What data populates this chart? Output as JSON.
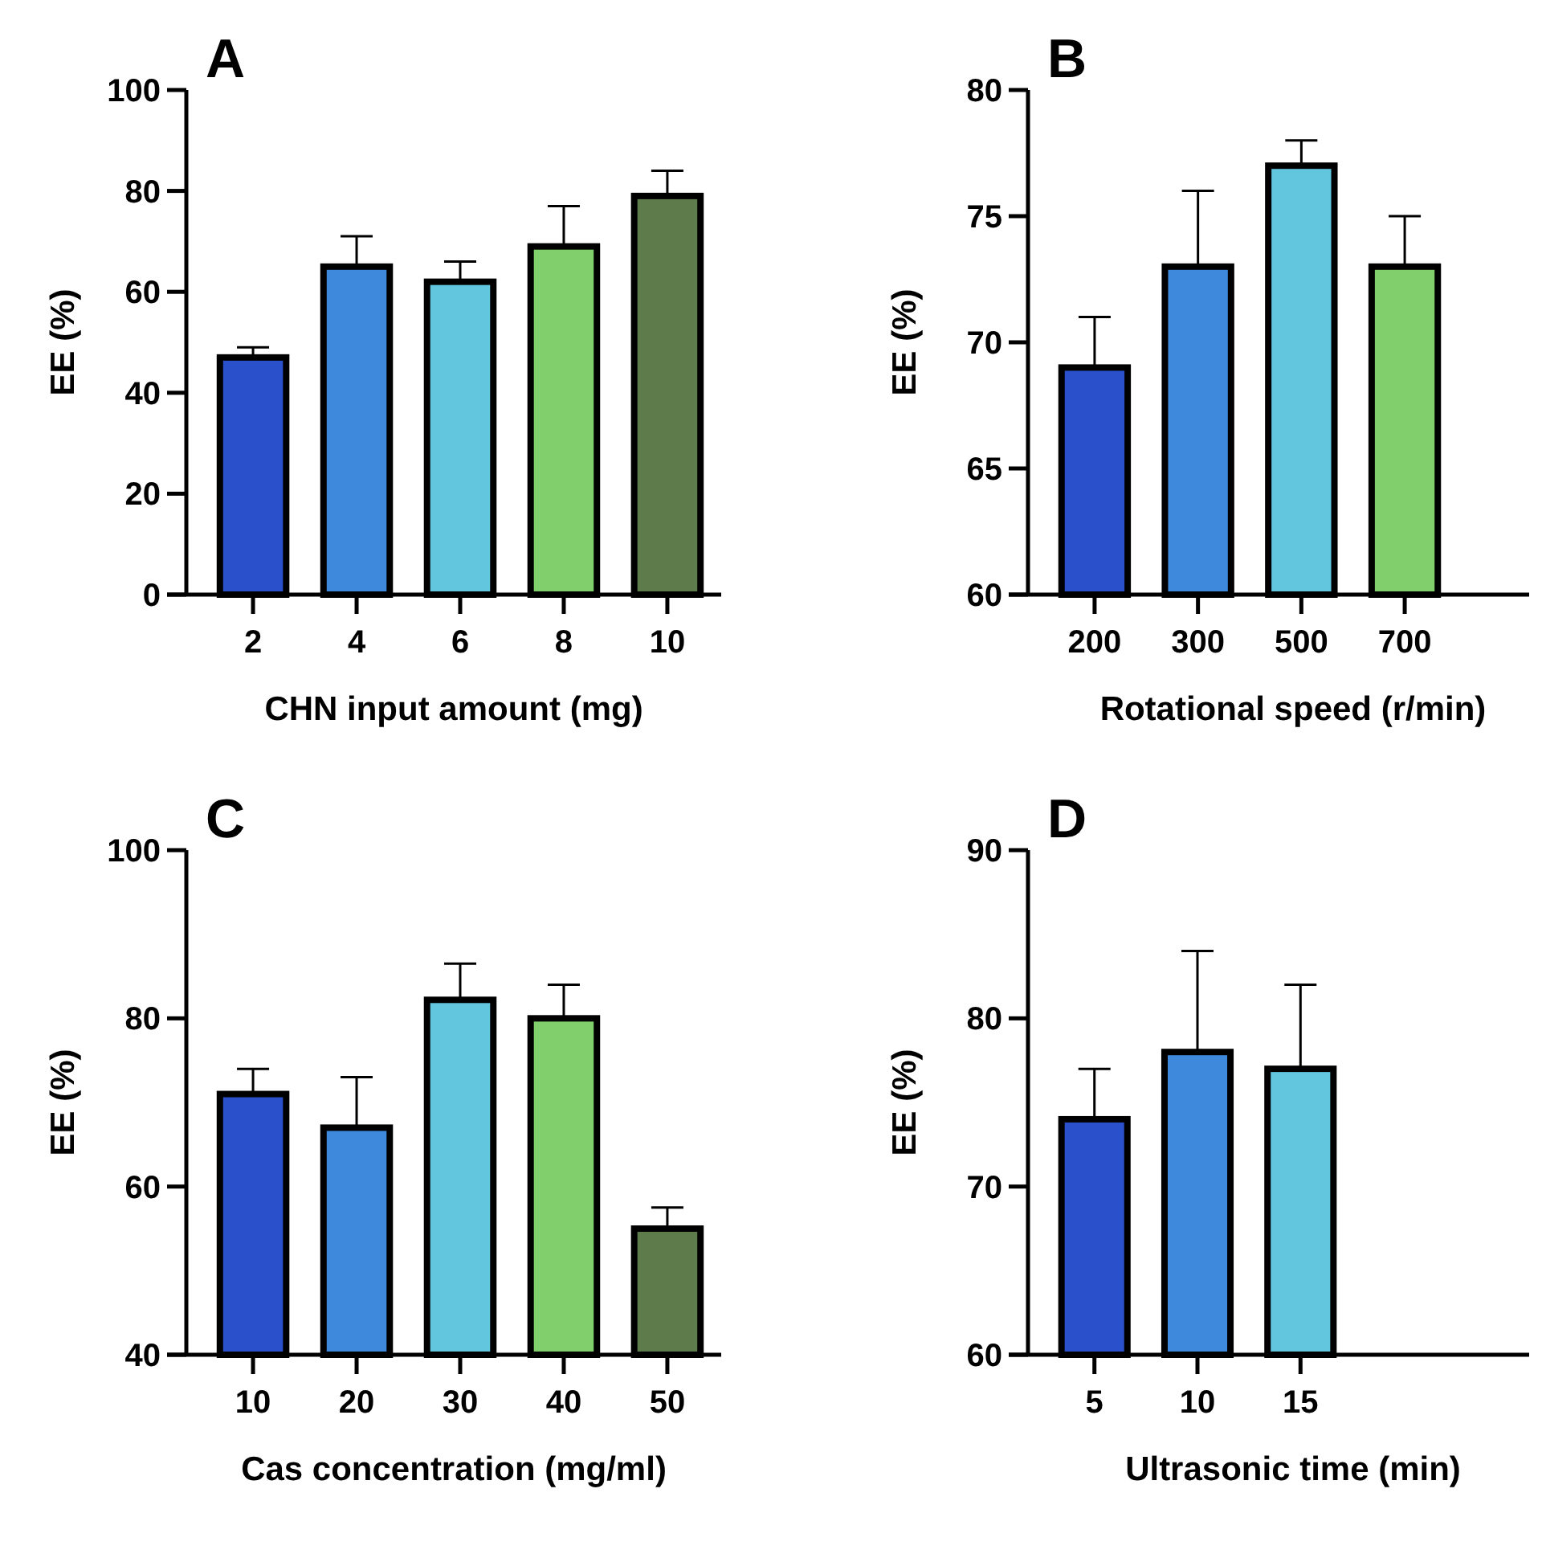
{
  "chart_data": [
    {
      "type": "bar",
      "title": "A",
      "xlabel": "CHN input amount (mg)",
      "ylabel": "EE (%)",
      "categories": [
        "2",
        "4",
        "6",
        "8",
        "10"
      ],
      "values": [
        47,
        65,
        62,
        69,
        79
      ],
      "errors": [
        2,
        6,
        4,
        8,
        5
      ],
      "colors": [
        "#2a50cb",
        "#3e89dc",
        "#62c6df",
        "#80cf6c",
        "#5e7c4b"
      ],
      "ylim": [
        0,
        100
      ],
      "yticks": [
        0,
        20,
        40,
        60,
        80,
        100
      ]
    },
    {
      "type": "bar",
      "title": "B",
      "xlabel": "Rotational speed (r/min)",
      "ylabel": "EE (%)",
      "categories": [
        "200",
        "300",
        "500",
        "700"
      ],
      "values": [
        69,
        73,
        77,
        73
      ],
      "errors": [
        2,
        3,
        1,
        2
      ],
      "colors": [
        "#2a50cb",
        "#3e89dc",
        "#62c6df",
        "#80cf6c"
      ],
      "ylim": [
        60,
        80
      ],
      "yticks": [
        60,
        65,
        70,
        75,
        80
      ]
    },
    {
      "type": "bar",
      "title": "C",
      "xlabel": "Cas concentration (mg/ml)",
      "ylabel": "EE (%)",
      "categories": [
        "10",
        "20",
        "30",
        "40",
        "50"
      ],
      "values": [
        71,
        67,
        82.2,
        80,
        55
      ],
      "errors": [
        3,
        6,
        4.3,
        4,
        2.5
      ],
      "colors": [
        "#2a50cb",
        "#3e89dc",
        "#62c6df",
        "#80cf6c",
        "#5e7c4b"
      ],
      "ylim": [
        40,
        100
      ],
      "yticks": [
        40,
        60,
        80,
        100
      ]
    },
    {
      "type": "bar",
      "title": "D",
      "xlabel": "Ultrasonic time (min)",
      "ylabel": "EE (%)",
      "categories": [
        "5",
        "10",
        "15"
      ],
      "values": [
        74,
        78,
        77
      ],
      "errors": [
        3,
        6,
        5
      ],
      "colors": [
        "#2a50cb",
        "#3e89dc",
        "#62c6df"
      ],
      "ylim": [
        60,
        90
      ],
      "yticks": [
        60,
        70,
        80,
        90
      ]
    }
  ]
}
